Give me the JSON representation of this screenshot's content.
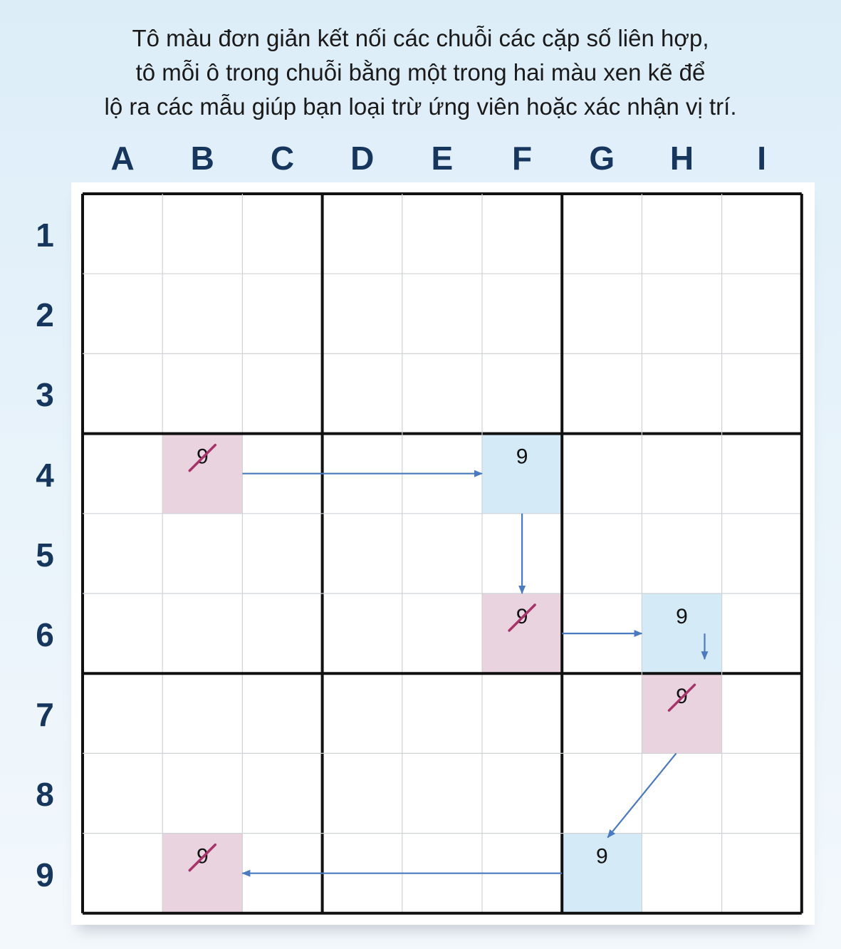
{
  "caption": {
    "lines": [
      "Tô màu đơn giản kết nối các chuỗi các cặp số liên hợp,",
      "tô mỗi ô trong chuỗi bằng một trong hai màu xen kẽ để",
      "lộ ra các mẫu giúp bạn loại trừ ứng viên hoặc xác nhận vị trí."
    ]
  },
  "columns": [
    "A",
    "B",
    "C",
    "D",
    "E",
    "F",
    "G",
    "H",
    "I"
  ],
  "rows": [
    "1",
    "2",
    "3",
    "4",
    "5",
    "6",
    "7",
    "8",
    "9"
  ],
  "colors": {
    "label": "#17365d",
    "pink": "#e8d3df",
    "blue": "#d5eaf7",
    "arrow": "#4a7bc0",
    "strike": "#a8326a"
  },
  "cells": [
    {
      "id": "B4",
      "col": 1,
      "row": 3,
      "digit": "9",
      "color": "pink",
      "eliminated": true
    },
    {
      "id": "F4",
      "col": 5,
      "row": 3,
      "digit": "9",
      "color": "blue",
      "eliminated": false
    },
    {
      "id": "F6",
      "col": 5,
      "row": 5,
      "digit": "9",
      "color": "pink",
      "eliminated": true
    },
    {
      "id": "H6",
      "col": 7,
      "row": 5,
      "digit": "9",
      "color": "blue",
      "eliminated": false
    },
    {
      "id": "H7",
      "col": 7,
      "row": 6,
      "digit": "9",
      "color": "pink",
      "eliminated": true
    },
    {
      "id": "G9",
      "col": 6,
      "row": 8,
      "digit": "9",
      "color": "blue",
      "eliminated": false
    },
    {
      "id": "B9",
      "col": 1,
      "row": 8,
      "digit": "9",
      "color": "pink",
      "eliminated": true
    }
  ],
  "chain": [
    {
      "from": "B4",
      "to": "F4"
    },
    {
      "from": "F4",
      "to": "F6"
    },
    {
      "from": "F6",
      "to": "H6"
    },
    {
      "from": "H6",
      "to": "H7"
    },
    {
      "from": "H7",
      "to": "G9"
    },
    {
      "from": "G9",
      "to": "B9"
    }
  ]
}
